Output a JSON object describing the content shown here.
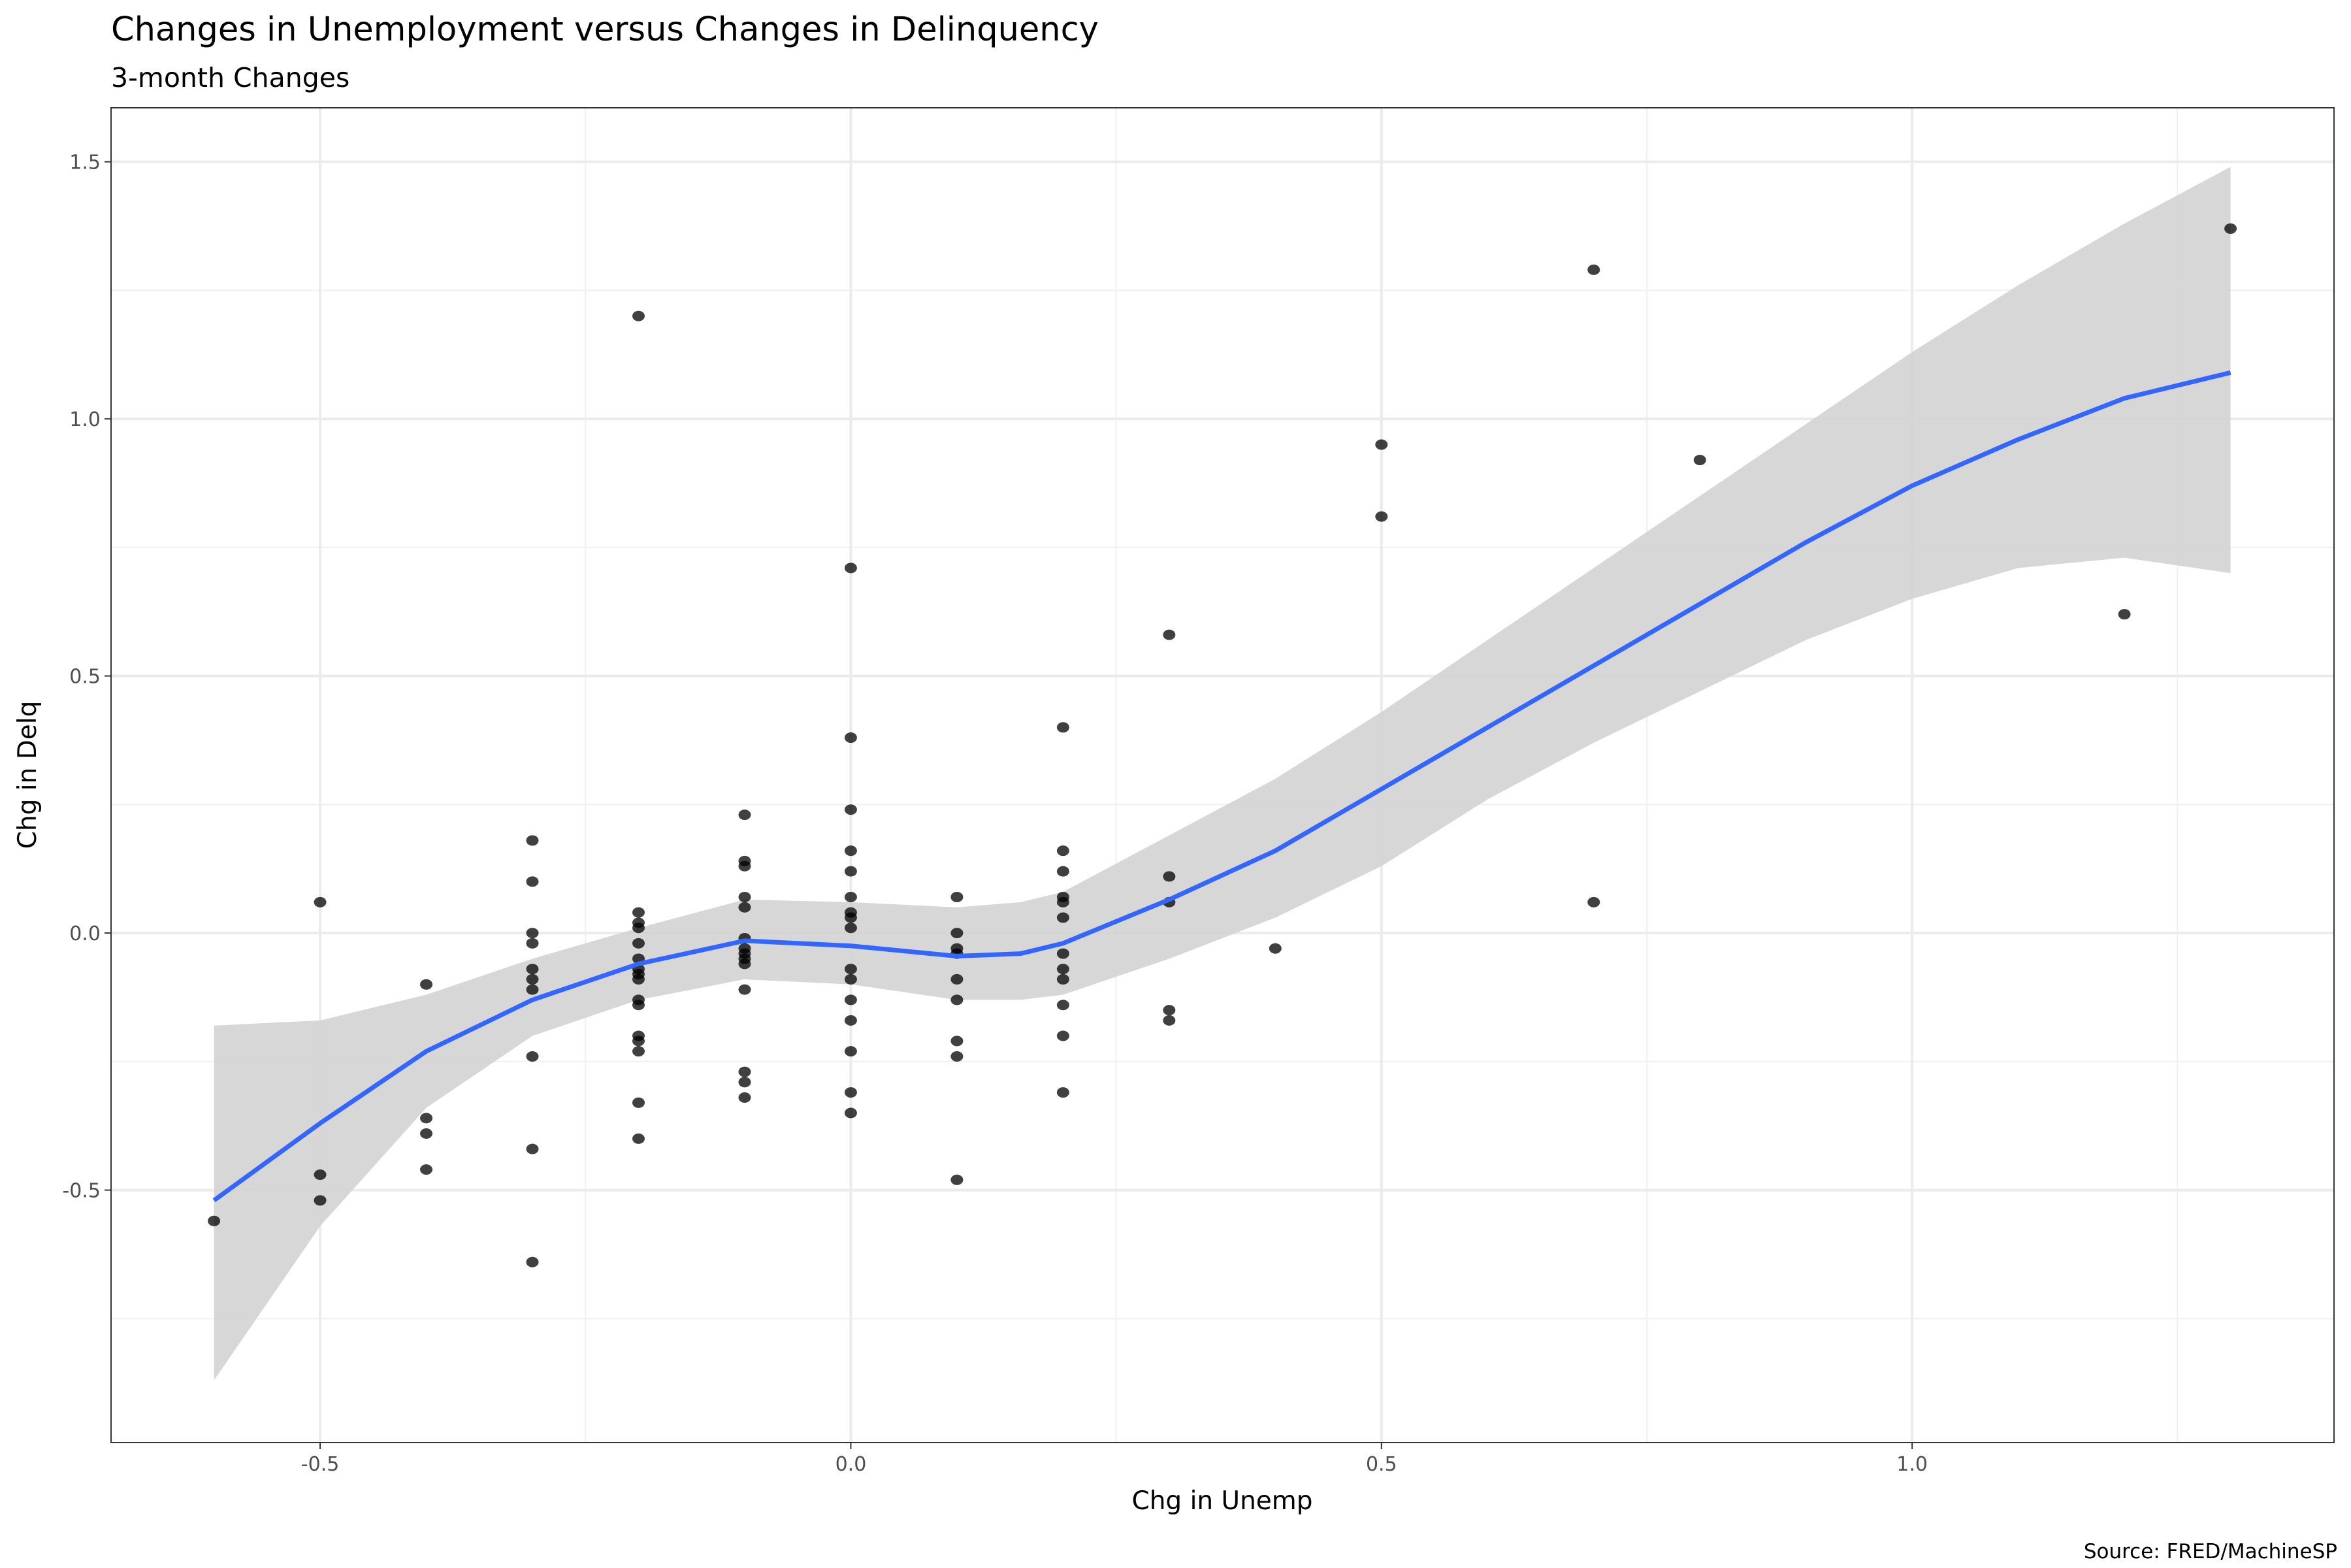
{
  "chart_data": {
    "type": "scatter",
    "title": "Changes in Unemployment versus Changes in Delinquency",
    "subtitle": "3-month Changes",
    "caption": "Source: FRED/MachineSP",
    "xlabel": "Chg in Unemp",
    "ylabel": "Chg in Delq",
    "xlim": [
      -0.697,
      1.3975
    ],
    "ylim": [
      -0.991,
      1.605
    ],
    "x_ticks": [
      -0.5,
      0.0,
      0.5,
      1.0
    ],
    "x_tick_labels": [
      "-0.5",
      "0.0",
      "0.5",
      "1.0"
    ],
    "y_ticks": [
      -0.5,
      0.0,
      0.5,
      1.0,
      1.5
    ],
    "y_tick_labels": [
      "-0.5",
      "0.0",
      "0.5",
      "1.0",
      "1.5"
    ],
    "grid": true,
    "colors": {
      "points": "#000000",
      "smooth": "#3366FF",
      "band": "#D3D3D3"
    },
    "points": [
      {
        "x": -0.6,
        "y": [
          -0.56
        ]
      },
      {
        "x": -0.5,
        "y": [
          0.06,
          -0.47,
          -0.52
        ]
      },
      {
        "x": -0.4,
        "y": [
          -0.1,
          -0.36,
          -0.39,
          -0.46
        ]
      },
      {
        "x": -0.3,
        "y": [
          0.18,
          0.1,
          0.0,
          -0.02,
          -0.07,
          -0.09,
          -0.11,
          -0.24,
          -0.42,
          -0.64
        ]
      },
      {
        "x": -0.2,
        "y": [
          1.2,
          0.04,
          0.02,
          0.01,
          -0.02,
          -0.05,
          -0.07,
          -0.08,
          -0.09,
          -0.13,
          -0.14,
          -0.2,
          -0.21,
          -0.23,
          -0.33,
          -0.4
        ]
      },
      {
        "x": -0.1,
        "y": [
          0.23,
          0.14,
          0.13,
          0.07,
          0.05,
          -0.01,
          -0.03,
          -0.04,
          -0.05,
          -0.06,
          -0.11,
          -0.27,
          -0.29,
          -0.32
        ]
      },
      {
        "x": 0.0,
        "y": [
          0.71,
          0.38,
          0.24,
          0.16,
          0.12,
          0.07,
          0.04,
          0.03,
          0.01,
          -0.07,
          -0.09,
          -0.13,
          -0.17,
          -0.23,
          -0.31,
          -0.35
        ]
      },
      {
        "x": 0.1,
        "y": [
          0.07,
          0.0,
          -0.03,
          -0.04,
          -0.09,
          -0.13,
          -0.21,
          -0.24,
          -0.48
        ]
      },
      {
        "x": 0.2,
        "y": [
          0.4,
          0.16,
          0.12,
          0.07,
          0.06,
          0.03,
          -0.04,
          -0.07,
          -0.09,
          -0.14,
          -0.2,
          -0.31
        ]
      },
      {
        "x": 0.3,
        "y": [
          0.58,
          0.11,
          0.06,
          -0.15,
          -0.17
        ]
      },
      {
        "x": 0.4,
        "y": [
          -0.03
        ]
      },
      {
        "x": 0.5,
        "y": [
          0.95,
          0.81
        ]
      },
      {
        "x": 0.7,
        "y": [
          1.29,
          0.06
        ]
      },
      {
        "x": 0.8,
        "y": [
          0.92
        ]
      },
      {
        "x": 1.2,
        "y": [
          0.62
        ]
      },
      {
        "x": 1.3,
        "y": [
          1.37
        ]
      }
    ],
    "smooth": {
      "x": [
        -0.6,
        -0.5,
        -0.4,
        -0.3,
        -0.2,
        -0.1,
        0.0,
        0.1,
        0.16,
        0.2,
        0.3,
        0.4,
        0.5,
        0.6,
        0.7,
        0.8,
        0.9,
        1.0,
        1.1,
        1.2,
        1.3
      ],
      "y": [
        -0.52,
        -0.37,
        -0.23,
        -0.13,
        -0.06,
        -0.015,
        -0.025,
        -0.045,
        -0.04,
        -0.02,
        0.065,
        0.16,
        0.28,
        0.4,
        0.52,
        0.64,
        0.76,
        0.87,
        0.96,
        1.04,
        1.09
      ],
      "upper": [
        -0.18,
        -0.17,
        -0.12,
        -0.05,
        0.01,
        0.065,
        0.06,
        0.05,
        0.06,
        0.08,
        0.19,
        0.3,
        0.43,
        0.57,
        0.71,
        0.85,
        0.99,
        1.13,
        1.26,
        1.38,
        1.49
      ],
      "lower": [
        -0.87,
        -0.57,
        -0.34,
        -0.2,
        -0.13,
        -0.09,
        -0.1,
        -0.13,
        -0.13,
        -0.12,
        -0.05,
        0.03,
        0.13,
        0.26,
        0.37,
        0.47,
        0.57,
        0.65,
        0.71,
        0.73,
        0.7
      ]
    }
  }
}
